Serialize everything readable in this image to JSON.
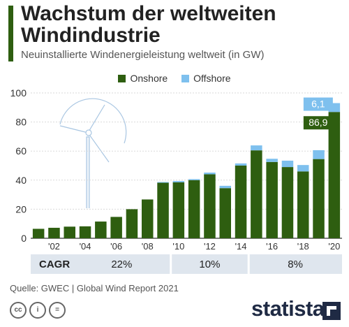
{
  "header": {
    "title": "Wachstum der weltweiten Windindustrie",
    "subtitle": "Neuinstallierte Windenergieleistung weltweit (in GW)"
  },
  "legend": {
    "onshore": "Onshore",
    "offshore": "Offshore"
  },
  "colors": {
    "onshore": "#2e5e10",
    "offshore": "#7ec0ee",
    "accent": "#2e5e10",
    "cagr_band": "#dfe6ee"
  },
  "chart_data": {
    "type": "bar",
    "stacked": true,
    "categories": [
      "2001",
      "2002",
      "2003",
      "2004",
      "2005",
      "2006",
      "2007",
      "2008",
      "2009",
      "2010",
      "2011",
      "2012",
      "2013",
      "2014",
      "2015",
      "2016",
      "2017",
      "2018",
      "2019",
      "2020"
    ],
    "x_tick_labels": [
      "'02",
      "'04",
      "'06",
      "'08",
      "'10",
      "'12",
      "'14",
      "'16",
      "'18",
      "'20"
    ],
    "series": [
      {
        "name": "Onshore",
        "values": [
          6.5,
          7.2,
          8.0,
          8.2,
          11.5,
          14.7,
          20.0,
          26.7,
          38.2,
          38.5,
          40.0,
          44.0,
          34.5,
          50.0,
          60.5,
          52.5,
          49.0,
          46.0,
          54.5,
          86.9
        ]
      },
      {
        "name": "Offshore",
        "values": [
          0,
          0,
          0,
          0,
          0,
          0,
          0,
          0,
          0.5,
          0.9,
          0.7,
          1.2,
          1.6,
          1.5,
          3.4,
          2.2,
          4.4,
          4.4,
          6.1,
          6.1
        ]
      }
    ],
    "ylim": [
      0,
      100
    ],
    "y_ticks": [
      0,
      20,
      40,
      60,
      80,
      100
    ],
    "grid": true,
    "legend_position": "top-center",
    "annotations": [
      {
        "series": "Onshore",
        "category": "2020",
        "label": "86,9"
      },
      {
        "series": "Offshore",
        "category": "2020",
        "label": "6,1"
      }
    ],
    "cagr": {
      "label": "CAGR",
      "periods": [
        {
          "from": "2001",
          "to": "2009",
          "value": "22%"
        },
        {
          "from": "2010",
          "to": "2014",
          "value": "10%"
        },
        {
          "from": "2015",
          "to": "2020",
          "value": "8%"
        }
      ]
    }
  },
  "footer": {
    "source": "Quelle: GWEC | Global Wind Report 2021",
    "license_icons": [
      "cc-icon",
      "by-icon",
      "nd-icon"
    ],
    "license_glyphs": [
      "cc",
      "i",
      "="
    ],
    "brand": "statista"
  }
}
